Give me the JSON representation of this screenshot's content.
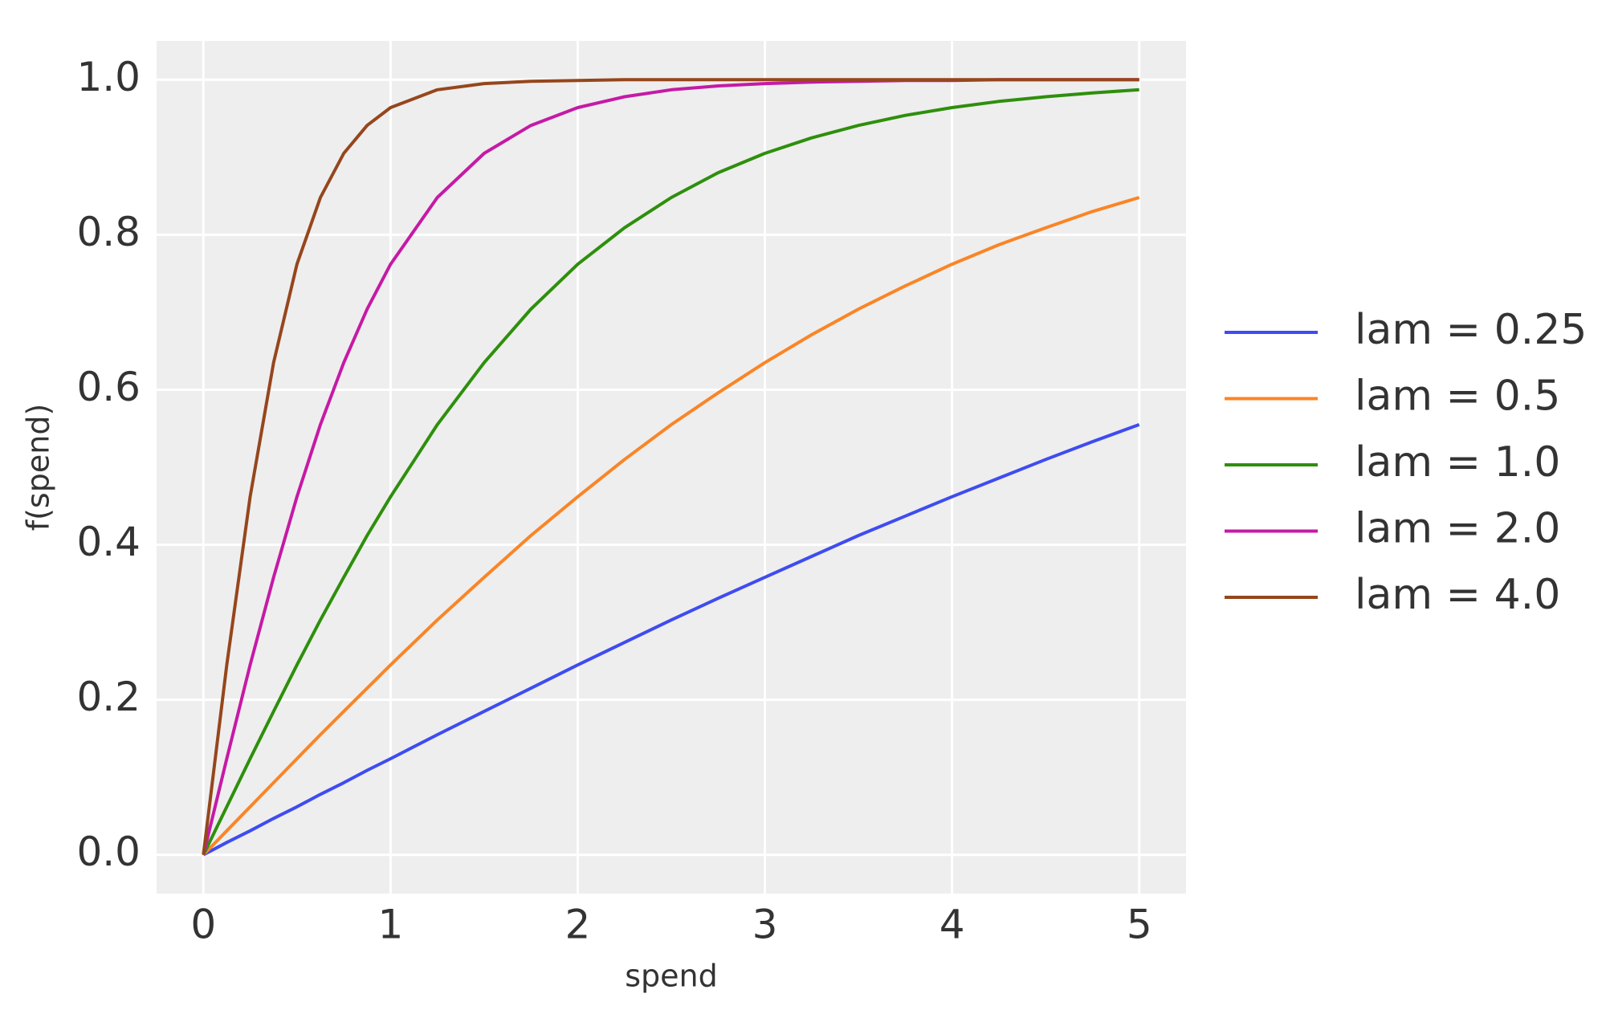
{
  "chart_data": {
    "type": "line",
    "xlabel": "spend",
    "ylabel": "f(spend)",
    "x": [
      0,
      0.125,
      0.25,
      0.375,
      0.5,
      0.625,
      0.75,
      0.875,
      1,
      1.25,
      1.5,
      1.75,
      2,
      2.25,
      2.5,
      2.75,
      3,
      3.25,
      3.5,
      3.75,
      4,
      4.25,
      4.5,
      4.75,
      5
    ],
    "series": [
      {
        "name": "lam = 0.25",
        "color": "#3f4cf0",
        "values": [
          0,
          0.016,
          0.031,
          0.047,
          0.062,
          0.078,
          0.093,
          0.109,
          0.124,
          0.155,
          0.185,
          0.215,
          0.245,
          0.274,
          0.303,
          0.331,
          0.358,
          0.385,
          0.412,
          0.437,
          0.462,
          0.486,
          0.51,
          0.533,
          0.555
        ]
      },
      {
        "name": "lam = 0.5",
        "color": "#fa8526",
        "values": [
          0,
          0.031,
          0.062,
          0.093,
          0.124,
          0.155,
          0.185,
          0.215,
          0.245,
          0.303,
          0.358,
          0.412,
          0.462,
          0.51,
          0.555,
          0.596,
          0.635,
          0.671,
          0.704,
          0.734,
          0.762,
          0.787,
          0.809,
          0.83,
          0.848
        ]
      },
      {
        "name": "lam = 1.0",
        "color": "#2e8f0c",
        "values": [
          0,
          0.062,
          0.124,
          0.185,
          0.245,
          0.303,
          0.358,
          0.412,
          0.462,
          0.555,
          0.635,
          0.704,
          0.762,
          0.809,
          0.848,
          0.88,
          0.905,
          0.925,
          0.941,
          0.954,
          0.964,
          0.972,
          0.978,
          0.983,
          0.987
        ]
      },
      {
        "name": "lam = 2.0",
        "color": "#c51aa5",
        "values": [
          0,
          0.124,
          0.245,
          0.358,
          0.462,
          0.555,
          0.635,
          0.704,
          0.762,
          0.848,
          0.905,
          0.941,
          0.964,
          0.978,
          0.987,
          0.992,
          0.995,
          0.997,
          0.998,
          0.999,
          0.999,
          1,
          1,
          1,
          1
        ]
      },
      {
        "name": "lam = 4.0",
        "color": "#96461c",
        "values": [
          0,
          0.245,
          0.462,
          0.635,
          0.762,
          0.848,
          0.905,
          0.941,
          0.964,
          0.987,
          0.995,
          0.998,
          0.999,
          1,
          1,
          1,
          1,
          1,
          1,
          1,
          1,
          1,
          1,
          1,
          1
        ]
      }
    ],
    "xlim": [
      -0.25,
      5.25
    ],
    "ylim": [
      -0.05,
      1.05
    ],
    "xticks": [
      0,
      1,
      2,
      3,
      4,
      5
    ],
    "yticks": [
      {
        "value": 0,
        "label": "0.0"
      },
      0.2,
      0.4,
      0.6,
      0.8,
      {
        "value": 1,
        "label": "1.0"
      }
    ],
    "grid": true,
    "legend": "right"
  }
}
